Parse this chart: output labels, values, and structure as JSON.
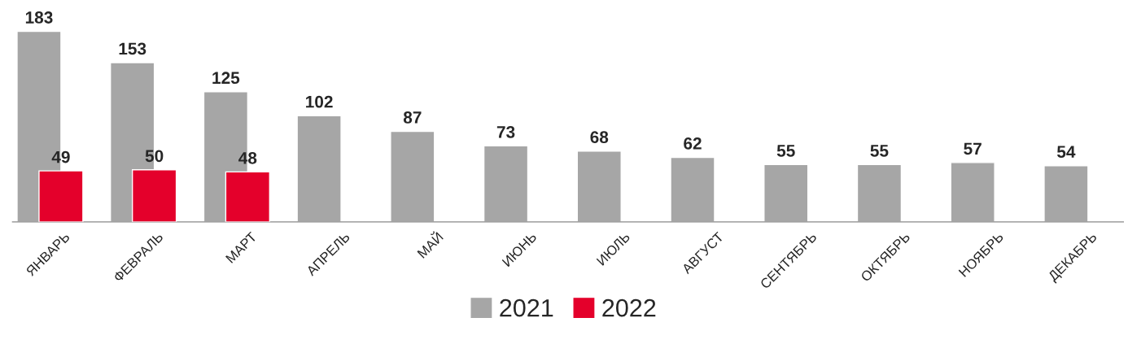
{
  "chart_data": {
    "type": "bar",
    "categories": [
      "ЯНВАРЬ",
      "ФЕВРАЛЬ",
      "МАРТ",
      "АПРЕЛЬ",
      "МАЙ",
      "ИЮНЬ",
      "ИЮЛЬ",
      "АВГУСТ",
      "СЕНТЯБРЬ",
      "ОКТЯБРЬ",
      "НОЯБРЬ",
      "ДЕКАБРЬ"
    ],
    "series": [
      {
        "name": "2021",
        "color": "#a6a6a6",
        "values": [
          183,
          153,
          125,
          102,
          87,
          73,
          68,
          62,
          55,
          55,
          57,
          54
        ]
      },
      {
        "name": "2022",
        "color": "#e4002b",
        "values": [
          49,
          50,
          48,
          null,
          null,
          null,
          null,
          null,
          null,
          null,
          null,
          null
        ]
      }
    ],
    "data_labels": true,
    "legend": "bottom",
    "grid": false,
    "tick_labels": "x"
  }
}
